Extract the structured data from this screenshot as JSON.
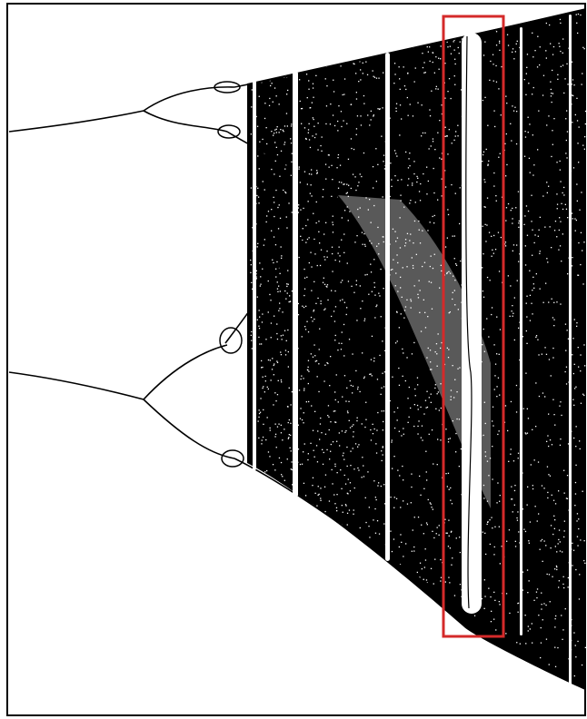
{
  "figure": {
    "subject": "bifurcation-diagram",
    "background": "#ffffff",
    "ink": "#000000",
    "highlight": {
      "color": "#d42a2a"
    },
    "title": "",
    "xlabel": "",
    "ylabel": ""
  }
}
